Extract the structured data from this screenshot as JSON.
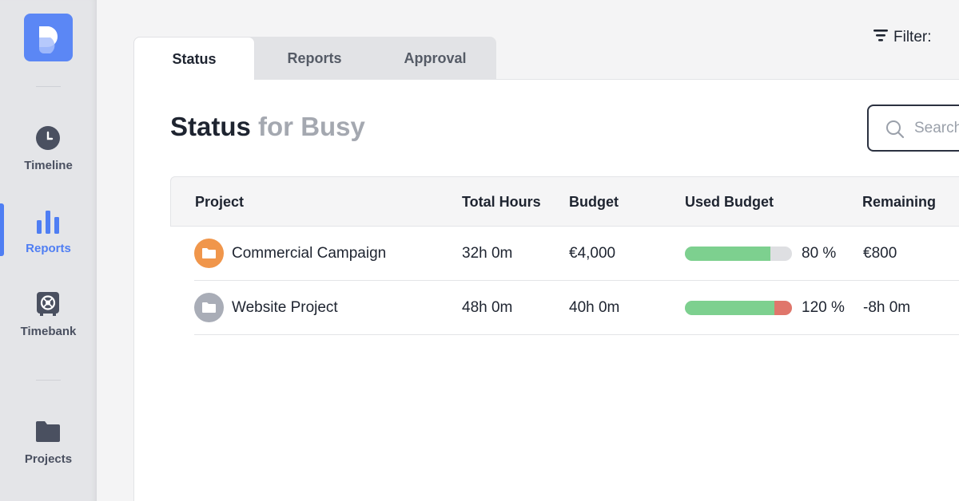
{
  "sidebar": {
    "items": [
      {
        "label": "Timeline",
        "icon": "clock-icon"
      },
      {
        "label": "Reports",
        "icon": "bar-chart-icon",
        "active": true
      },
      {
        "label": "Timebank",
        "icon": "safe-icon"
      },
      {
        "label": "Projects",
        "icon": "folder-icon"
      }
    ]
  },
  "filter": {
    "label": "Filter:",
    "icon": "filter-icon"
  },
  "tabs": [
    {
      "label": "Status",
      "active": true
    },
    {
      "label": "Reports"
    },
    {
      "label": "Approval"
    }
  ],
  "page": {
    "title": "Status",
    "subtitle": "for Busy"
  },
  "search": {
    "placeholder": "Search",
    "icon": "search-icon"
  },
  "table": {
    "columns": [
      "Project",
      "Total Hours",
      "Budget",
      "Used Budget",
      "Remaining"
    ],
    "rows": [
      {
        "project": "Commercial Campaign",
        "icon_color": "#f0964b",
        "total_hours": "32h 0m",
        "budget": "€4,000",
        "used_budget_label": "80 %",
        "used_budget_percent": 80,
        "remaining": "€800"
      },
      {
        "project": "Website Project",
        "icon_color": "#a9adb7",
        "total_hours": "48h 0m",
        "budget": "40h 0m",
        "used_budget_label": "120 %",
        "used_budget_percent": 120,
        "remaining": "-8h 0m"
      }
    ]
  },
  "colors": {
    "accent": "#4f7ef3",
    "progress_green": "#7dd08f",
    "progress_over": "#e0766b",
    "progress_track": "#dedfe2"
  }
}
